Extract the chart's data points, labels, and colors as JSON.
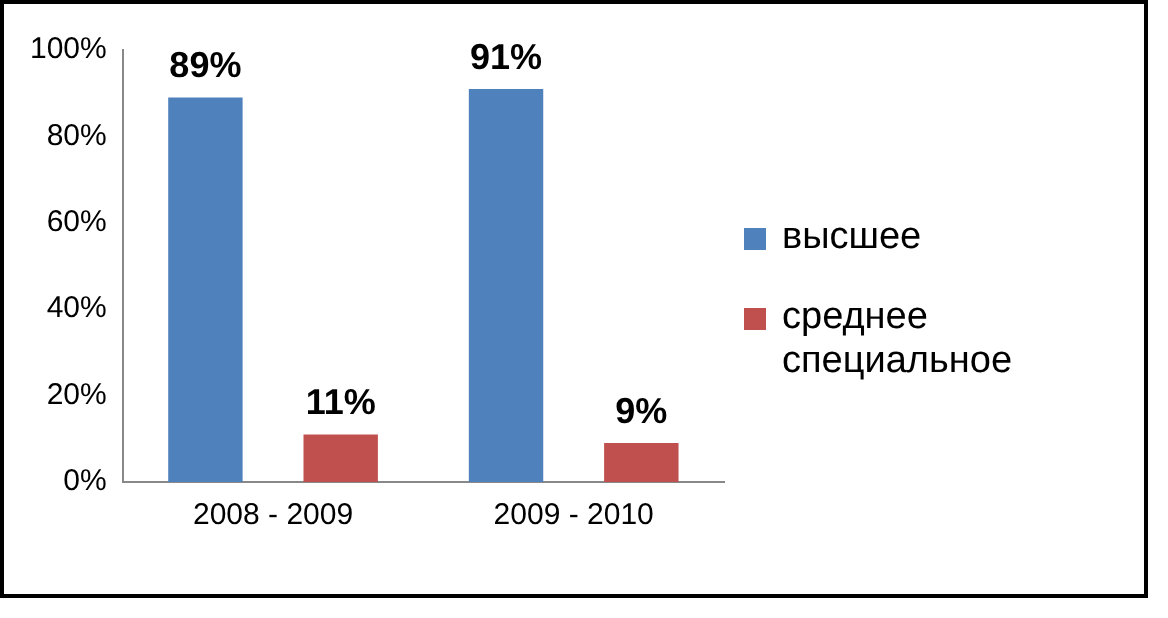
{
  "chart_data": {
    "type": "bar",
    "categories": [
      "2008 - 2009",
      "2009 - 2010"
    ],
    "series": [
      {
        "name": "высшее",
        "color": "#4f81bd",
        "values": [
          89,
          91
        ],
        "value_labels": [
          "89%",
          "91%"
        ]
      },
      {
        "name": "среднее специальное",
        "color": "#c0504d",
        "values": [
          11,
          9
        ],
        "value_labels": [
          "11%",
          "9%"
        ]
      }
    ],
    "ylim": [
      0,
      100
    ],
    "yticks": [
      {
        "value": 0,
        "label": "0%"
      },
      {
        "value": 20,
        "label": "20%"
      },
      {
        "value": 40,
        "label": "40%"
      },
      {
        "value": 60,
        "label": "60%"
      },
      {
        "value": 80,
        "label": "80%"
      },
      {
        "value": 100,
        "label": "100%"
      }
    ],
    "grid": false,
    "legend": "right"
  }
}
